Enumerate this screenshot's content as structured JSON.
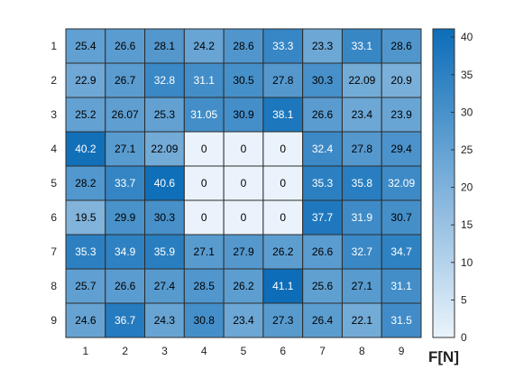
{
  "chart_data": {
    "type": "heatmap",
    "title": "",
    "xlabel": "",
    "ylabel": "",
    "x_labels": [
      "1",
      "2",
      "3",
      "4",
      "5",
      "6",
      "7",
      "8",
      "9"
    ],
    "y_labels": [
      "1",
      "2",
      "3",
      "4",
      "5",
      "6",
      "7",
      "8",
      "9"
    ],
    "values": [
      [
        "25.4",
        "26.6",
        "28.1",
        "24.2",
        "28.6",
        "33.3",
        "23.3",
        "33.1",
        "28.6"
      ],
      [
        "22.9",
        "26.7",
        "32.8",
        "31.1",
        "30.5",
        "27.8",
        "30.3",
        "22.09",
        "20.9"
      ],
      [
        "25.2",
        "26.07",
        "25.3",
        "31.05",
        "30.9",
        "38.1",
        "26.6",
        "23.4",
        "23.9"
      ],
      [
        "40.2",
        "27.1",
        "22.09",
        "0",
        "0",
        "0",
        "32.4",
        "27.8",
        "29.4"
      ],
      [
        "28.2",
        "33.7",
        "40.6",
        "0",
        "0",
        "0",
        "35.3",
        "35.8",
        "32.09"
      ],
      [
        "19.5",
        "29.9",
        "30.3",
        "0",
        "0",
        "0",
        "37.7",
        "31.9",
        "30.7"
      ],
      [
        "35.3",
        "34.9",
        "35.9",
        "27.1",
        "27.9",
        "26.2",
        "26.6",
        "32.7",
        "34.7"
      ],
      [
        "25.7",
        "26.6",
        "27.4",
        "28.5",
        "26.2",
        "41.1",
        "25.6",
        "27.1",
        "31.1"
      ],
      [
        "24.6",
        "36.7",
        "24.3",
        "30.8",
        "23.4",
        "27.3",
        "26.4",
        "22.1",
        "31.5"
      ]
    ],
    "colorbar": {
      "label": "F[N]",
      "min": 0,
      "max": 41.1,
      "ticks": [
        "0",
        "5",
        "10",
        "15",
        "20",
        "25",
        "30",
        "35",
        "40"
      ]
    },
    "colors": {
      "low": "#eaf3fb",
      "high": "#0d6db8",
      "dark_text": "#000000",
      "light_text": "#ffffff",
      "grid": "#2c2c2c"
    }
  }
}
